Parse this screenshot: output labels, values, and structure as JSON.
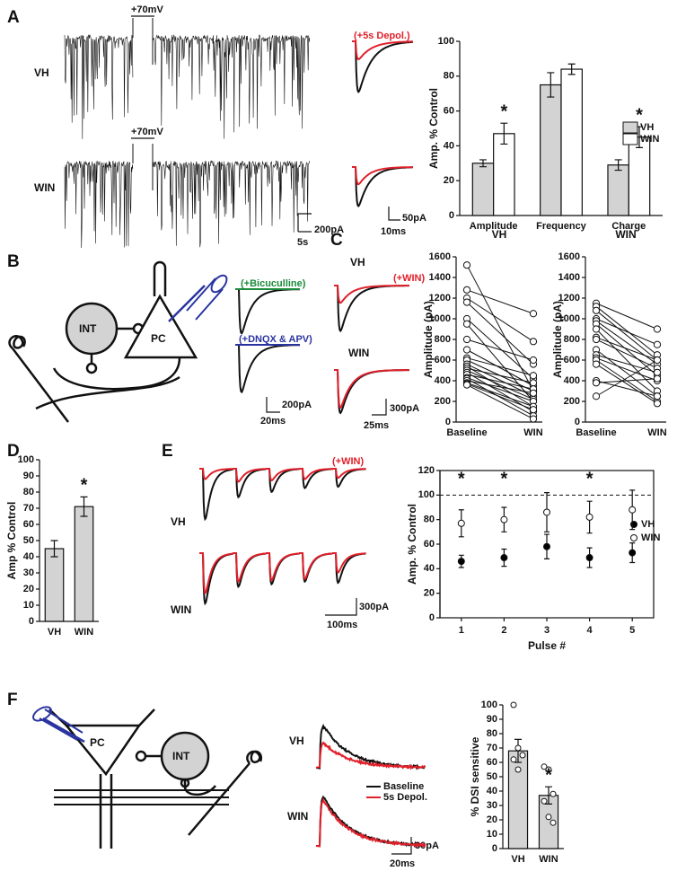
{
  "figure": {
    "panel_letters": [
      "A",
      "B",
      "C",
      "D",
      "E",
      "F"
    ],
    "a": {
      "vh": "VH",
      "win": "WIN",
      "step1": "+70mV",
      "step2": "+70mV",
      "depol": "(+5s Depol.)",
      "scales": [
        "200pA",
        "5s",
        "50pA",
        "10ms"
      ]
    },
    "b": {
      "bic": "(+Bicuculline)",
      "dnqx": "(+DNQX & APV)",
      "int": "INT",
      "pc": "PC",
      "scales": [
        "200pA",
        "20ms"
      ]
    },
    "c": {
      "vh": "VH",
      "win_drug": "(+WIN)",
      "win": "WIN",
      "scales": [
        "300pA",
        "25ms"
      ]
    },
    "e": {
      "win_drug": "(+WIN)",
      "vh": "VH",
      "win": "WIN",
      "scales": [
        "300pA",
        "100ms"
      ]
    },
    "f": {
      "pc": "PC",
      "int": "INT",
      "vh": "VH",
      "win": "WIN",
      "baseline": "Baseline",
      "depol": "5s Depol.",
      "scales": [
        "30pA",
        "20ms"
      ]
    }
  },
  "chart_data": [
    {
      "type": "bar",
      "y_label": "Amp. % Control",
      "categories": [
        "Amplitude",
        "Frequency",
        "Charge"
      ],
      "series": [
        {
          "name": "VH",
          "color": "#d3d3d3",
          "values": [
            30,
            75,
            29
          ],
          "errors": [
            2,
            7,
            3
          ]
        },
        {
          "name": "WIN",
          "color": "#ffffff",
          "values": [
            47,
            84,
            45
          ],
          "errors": [
            6,
            3,
            6
          ]
        }
      ],
      "significance": [
        "*",
        null,
        "*"
      ],
      "ylim": [
        0,
        100
      ],
      "yticks": [
        0,
        20,
        40,
        60,
        80,
        100
      ],
      "legend": "right"
    },
    {
      "type": "slope",
      "title": "VH",
      "y_label": "Amplitude (pA)",
      "categories": [
        "Baseline",
        "WIN"
      ],
      "pairs": [
        [
          1520,
          300
        ],
        [
          1280,
          1050
        ],
        [
          1200,
          780
        ],
        [
          1160,
          560
        ],
        [
          1000,
          420
        ],
        [
          950,
          200
        ],
        [
          800,
          600
        ],
        [
          700,
          350
        ],
        [
          620,
          450
        ],
        [
          600,
          300
        ],
        [
          560,
          250
        ],
        [
          540,
          150
        ],
        [
          520,
          380
        ],
        [
          500,
          220
        ],
        [
          480,
          100
        ],
        [
          460,
          320
        ],
        [
          430,
          200
        ],
        [
          420,
          60
        ],
        [
          400,
          280
        ],
        [
          380,
          150
        ],
        [
          370,
          120
        ],
        [
          360,
          30
        ]
      ],
      "ylim": [
        0,
        1600
      ],
      "yticks": [
        0,
        200,
        400,
        600,
        800,
        1000,
        1200,
        1400,
        1600
      ]
    },
    {
      "type": "slope",
      "title": "WIN",
      "y_label": "Amplitude (pA)",
      "categories": [
        "Baseline",
        "WIN"
      ],
      "pairs": [
        [
          1150,
          900
        ],
        [
          1120,
          650
        ],
        [
          1080,
          600
        ],
        [
          1000,
          750
        ],
        [
          980,
          560
        ],
        [
          950,
          450
        ],
        [
          900,
          300
        ],
        [
          820,
          600
        ],
        [
          800,
          520
        ],
        [
          700,
          250
        ],
        [
          650,
          480
        ],
        [
          620,
          400
        ],
        [
          600,
          200
        ],
        [
          560,
          180
        ],
        [
          400,
          250
        ],
        [
          380,
          420
        ],
        [
          250,
          600
        ]
      ],
      "ylim": [
        0,
        1600
      ],
      "yticks": [
        0,
        200,
        400,
        600,
        800,
        1000,
        1200,
        1400,
        1600
      ]
    },
    {
      "type": "bar",
      "y_label": "Amp % Control",
      "categories": [
        "VH",
        "WIN"
      ],
      "color": "#d3d3d3",
      "values": [
        45,
        71
      ],
      "errors": [
        5,
        6
      ],
      "significance": [
        null,
        "*"
      ],
      "ylim": [
        0,
        100
      ],
      "yticks": [
        0,
        10,
        20,
        30,
        40,
        50,
        60,
        70,
        80,
        90,
        100
      ]
    },
    {
      "type": "scatter",
      "y_label": "Amp. % Control",
      "x_label": "Pulse #",
      "x": [
        1,
        2,
        3,
        4,
        5
      ],
      "series": [
        {
          "name": "VH",
          "color": "#000000",
          "values": [
            46,
            49,
            58,
            49,
            53
          ],
          "errors": [
            5,
            7,
            10,
            8,
            8
          ]
        },
        {
          "name": "WIN",
          "color": "#ffffff",
          "values": [
            77,
            80,
            86,
            82,
            88
          ],
          "errors": [
            11,
            10,
            16,
            13,
            16
          ]
        }
      ],
      "significance": [
        "*",
        "*",
        null,
        "*",
        null
      ],
      "reference_line": 100,
      "xlim": [
        0.5,
        5.5
      ],
      "xticks": [
        1,
        2,
        3,
        4,
        5
      ],
      "ylim": [
        0,
        120
      ],
      "yticks": [
        0,
        20,
        40,
        60,
        80,
        100,
        120
      ],
      "legend": "right"
    },
    {
      "type": "bar",
      "y_label": "% DSI sensitive",
      "categories": [
        "VH",
        "WIN"
      ],
      "color": "#d3d3d3",
      "values": [
        68,
        37
      ],
      "errors": [
        8,
        6
      ],
      "points": [
        [
          100,
          70,
          65,
          62,
          55
        ],
        [
          57,
          55,
          38,
          33,
          22,
          18
        ]
      ],
      "significance": [
        null,
        "*"
      ],
      "ylim": [
        0,
        100
      ],
      "yticks": [
        0,
        10,
        20,
        30,
        40,
        50,
        60,
        70,
        80,
        90,
        100
      ]
    }
  ]
}
